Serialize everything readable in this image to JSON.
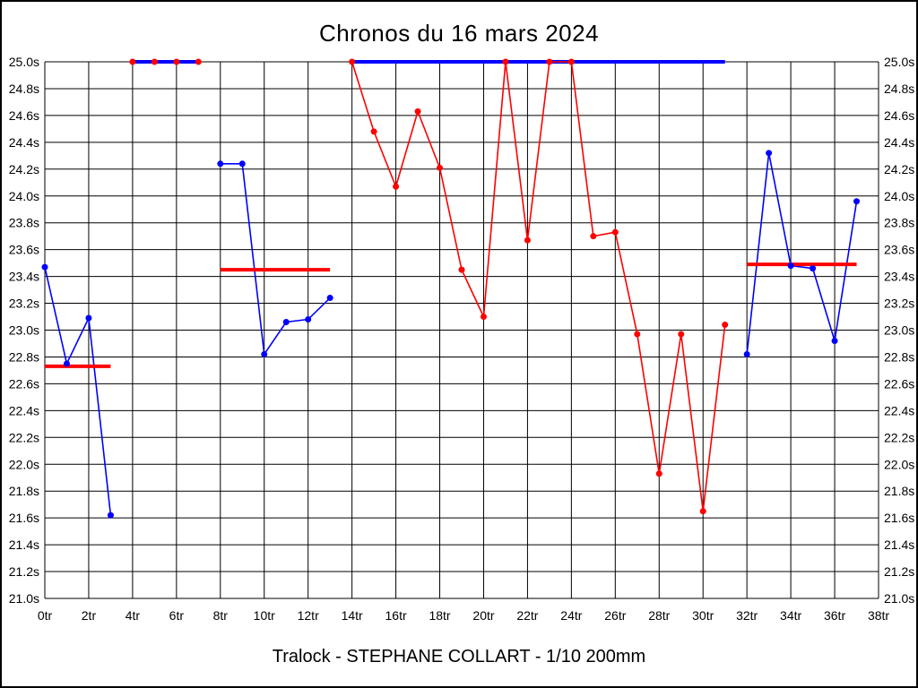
{
  "title": "Chronos du 16 mars 2024",
  "footer": "Tralock - STEPHANE COLLART - 1/10 200mm",
  "colors": {
    "blue_series": "#0000ff",
    "red_series": "#ff0000",
    "grid": "#000000",
    "background": "#ffffff",
    "text": "#000000"
  },
  "chart_data": {
    "type": "line",
    "title": "Chronos du 16 mars 2024",
    "xlabel": "",
    "ylabel": "",
    "x_unit": "tr",
    "y_unit": "s",
    "xlim": [
      0,
      38
    ],
    "ylim": [
      21.0,
      25.0
    ],
    "x_tick_interval": 2,
    "y_tick_interval": 0.2,
    "grid": true,
    "legend_position": "none",
    "y_axis_labels_both_sides": true,
    "x_tick_labels": [
      "0tr",
      "2tr",
      "4tr",
      "6tr",
      "8tr",
      "10tr",
      "12tr",
      "14tr",
      "16tr",
      "18tr",
      "20tr",
      "22tr",
      "24tr",
      "26tr",
      "28tr",
      "30tr",
      "32tr",
      "34tr",
      "36tr",
      "38tr"
    ],
    "y_tick_labels": [
      "25.0s",
      "24.8s",
      "24.6s",
      "24.4s",
      "24.2s",
      "24.0s",
      "23.8s",
      "23.6s",
      "23.4s",
      "23.2s",
      "23.0s",
      "22.8s",
      "22.6s",
      "22.4s",
      "22.2s",
      "22.0s",
      "21.8s",
      "21.6s",
      "21.4s",
      "21.2s",
      "21.0s"
    ],
    "series": [
      {
        "name": "blue-laps-0-3",
        "role": "lap-times",
        "color": "#0000ff",
        "style": "both",
        "width": "thin",
        "x": [
          0,
          1,
          2,
          3
        ],
        "y": [
          23.47,
          22.75,
          23.09,
          21.62
        ]
      },
      {
        "name": "blue-flat-4-7",
        "role": "clamped-at-max",
        "color": "#0000ff",
        "style": "line",
        "width": "thick",
        "x": [
          4,
          7
        ],
        "y": [
          25.0,
          25.0
        ]
      },
      {
        "name": "blue-laps-8-13",
        "role": "lap-times",
        "color": "#0000ff",
        "style": "both",
        "width": "thin",
        "x": [
          8,
          9,
          10,
          11,
          12,
          13
        ],
        "y": [
          24.24,
          24.24,
          22.82,
          23.06,
          23.08,
          23.24
        ]
      },
      {
        "name": "blue-flat-14-31",
        "role": "clamped-at-max",
        "color": "#0000ff",
        "style": "line",
        "width": "thick",
        "x": [
          14,
          31
        ],
        "y": [
          25.0,
          25.0
        ]
      },
      {
        "name": "blue-laps-32-37",
        "role": "lap-times",
        "color": "#0000ff",
        "style": "both",
        "width": "thin",
        "x": [
          32,
          33,
          34,
          35,
          36,
          37
        ],
        "y": [
          22.82,
          24.32,
          23.48,
          23.46,
          22.92,
          23.96
        ]
      },
      {
        "name": "red-dots-4-7",
        "role": "clamped-at-max",
        "color": "#ff0000",
        "style": "markers",
        "width": "thin",
        "x": [
          4,
          5,
          6,
          7
        ],
        "y": [
          25.0,
          25.0,
          25.0,
          25.0
        ]
      },
      {
        "name": "red-laps-14-31",
        "role": "lap-times",
        "color": "#ff0000",
        "style": "both",
        "width": "thin",
        "x": [
          14,
          15,
          16,
          17,
          18,
          19,
          20,
          21,
          22,
          23,
          24,
          25,
          26,
          27,
          28,
          29,
          30,
          31
        ],
        "y": [
          25.0,
          24.48,
          24.07,
          24.63,
          24.21,
          23.45,
          23.1,
          25.0,
          23.67,
          25.0,
          25.0,
          23.7,
          23.73,
          22.97,
          21.93,
          22.97,
          21.65,
          23.04
        ]
      },
      {
        "name": "red-average-0-3",
        "role": "segment-average",
        "color": "#ff0000",
        "style": "line",
        "width": "thick",
        "x": [
          0,
          3
        ],
        "y": [
          22.73,
          22.73
        ]
      },
      {
        "name": "red-average-8-13",
        "role": "segment-average",
        "color": "#ff0000",
        "style": "line",
        "width": "thick",
        "x": [
          8,
          13
        ],
        "y": [
          23.45,
          23.45
        ]
      },
      {
        "name": "red-average-32-37",
        "role": "segment-average",
        "color": "#ff0000",
        "style": "line",
        "width": "thick",
        "x": [
          32,
          37
        ],
        "y": [
          23.49,
          23.49
        ]
      }
    ]
  }
}
